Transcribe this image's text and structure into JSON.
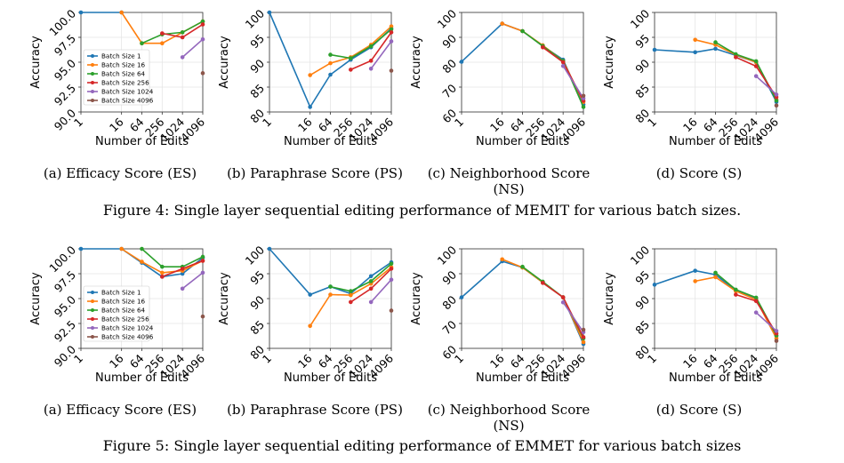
{
  "figures": [
    {
      "caption": "Figure 4: Single layer sequential editing performance of MEMIT for various batch sizes.",
      "subcaptions": [
        "(a) Efficacy Score (ES)",
        "(b) Paraphrase Score (PS)",
        "(c) Neighborhood Score (NS)",
        "(d) Score (S)"
      ]
    },
    {
      "caption": "Figure 5: Single layer sequential editing performance of EMMET for various batch sizes",
      "subcaptions": [
        "(a) Efficacy Score (ES)",
        "(b) Paraphrase Score (PS)",
        "(c) Neighborhood Score (NS)",
        "(d) Score (S)"
      ]
    }
  ],
  "colors": {
    "Batch Size 1": "#1f77b4",
    "Batch Size 16": "#ff7f0e",
    "Batch Size 64": "#2ca02c",
    "Batch Size 256": "#d62728",
    "Batch Size 1024": "#9467bd",
    "Batch Size 4096": "#8c564b"
  },
  "chart_data": [
    {
      "type": "line",
      "figure": 4,
      "panel": "a",
      "xlabel": "Number of Edits",
      "ylabel": "Accuracy",
      "x_ticks": [
        "1",
        "16",
        "64",
        "256",
        "1024",
        "4096"
      ],
      "y_ticks": [
        "90.0",
        "92.5",
        "95.0",
        "97.5",
        "100.0"
      ],
      "ylim": [
        90,
        100
      ],
      "grid": true,
      "legend": "lower-left",
      "series": [
        {
          "name": "Batch Size 1",
          "x": [
            1,
            16
          ],
          "y": [
            100,
            100
          ]
        },
        {
          "name": "Batch Size 16",
          "x": [
            16,
            64,
            256,
            1024,
            4096
          ],
          "y": [
            100,
            96.9,
            96.9,
            98.0,
            99.1
          ]
        },
        {
          "name": "Batch Size 64",
          "x": [
            64,
            256,
            1024,
            4096
          ],
          "y": [
            96.9,
            97.8,
            98.0,
            99.1
          ]
        },
        {
          "name": "Batch Size 256",
          "x": [
            256,
            1024,
            4096
          ],
          "y": [
            97.9,
            97.5,
            98.8
          ]
        },
        {
          "name": "Batch Size 1024",
          "x": [
            1024,
            4096
          ],
          "y": [
            95.5,
            97.3
          ]
        },
        {
          "name": "Batch Size 4096",
          "x": [
            4096
          ],
          "y": [
            93.9
          ]
        }
      ]
    },
    {
      "type": "line",
      "figure": 4,
      "panel": "b",
      "xlabel": "Number of Edits",
      "ylabel": "Accuracy",
      "x_ticks": [
        "1",
        "16",
        "64",
        "256",
        "1024",
        "4096"
      ],
      "y_ticks": [
        "80",
        "85",
        "90",
        "95",
        "100"
      ],
      "ylim": [
        80,
        100
      ],
      "grid": true,
      "series": [
        {
          "name": "Batch Size 1",
          "x": [
            1,
            16,
            64,
            256,
            1024,
            4096
          ],
          "y": [
            100,
            81.0,
            87.5,
            90.5,
            93.0,
            96.8
          ]
        },
        {
          "name": "Batch Size 16",
          "x": [
            16,
            64,
            256,
            1024,
            4096
          ],
          "y": [
            87.4,
            89.8,
            91.0,
            93.5,
            97.2
          ]
        },
        {
          "name": "Batch Size 64",
          "x": [
            64,
            256,
            1024,
            4096
          ],
          "y": [
            91.5,
            90.8,
            93.2,
            96.6
          ]
        },
        {
          "name": "Batch Size 256",
          "x": [
            256,
            1024,
            4096
          ],
          "y": [
            88.5,
            90.3,
            96.0
          ]
        },
        {
          "name": "Batch Size 1024",
          "x": [
            1024,
            4096
          ],
          "y": [
            88.7,
            94.2
          ]
        },
        {
          "name": "Batch Size 4096",
          "x": [
            4096
          ],
          "y": [
            88.3
          ]
        }
      ]
    },
    {
      "type": "line",
      "figure": 4,
      "panel": "c",
      "xlabel": "Number of Edits",
      "ylabel": "Accuracy",
      "x_ticks": [
        "1",
        "16",
        "64",
        "256",
        "1024",
        "4096"
      ],
      "y_ticks": [
        "60",
        "70",
        "80",
        "90",
        "100"
      ],
      "ylim": [
        60,
        100
      ],
      "grid": true,
      "series": [
        {
          "name": "Batch Size 1",
          "x": [
            1,
            16,
            64,
            256,
            1024,
            4096
          ],
          "y": [
            80.2,
            95.5,
            92.5,
            86.5,
            81.0,
            63.0
          ]
        },
        {
          "name": "Batch Size 16",
          "x": [
            16,
            64,
            256,
            1024,
            4096
          ],
          "y": [
            95.5,
            92.5,
            86.8,
            80.5,
            64.0
          ]
        },
        {
          "name": "Batch Size 64",
          "x": [
            64,
            256,
            1024,
            4096
          ],
          "y": [
            92.5,
            86.5,
            80.5,
            62.0
          ]
        },
        {
          "name": "Batch Size 256",
          "x": [
            256,
            1024,
            4096
          ],
          "y": [
            86.0,
            80.0,
            64.5
          ]
        },
        {
          "name": "Batch Size 1024",
          "x": [
            1024,
            4096
          ],
          "y": [
            78.5,
            65.5
          ]
        },
        {
          "name": "Batch Size 4096",
          "x": [
            4096
          ],
          "y": [
            66.5
          ]
        }
      ]
    },
    {
      "type": "line",
      "figure": 4,
      "panel": "d",
      "xlabel": "Number of Edits",
      "ylabel": "Accuracy",
      "x_ticks": [
        "1",
        "16",
        "64",
        "256",
        "1024",
        "4096"
      ],
      "y_ticks": [
        "80",
        "85",
        "90",
        "95",
        "100"
      ],
      "ylim": [
        80,
        100
      ],
      "grid": true,
      "series": [
        {
          "name": "Batch Size 1",
          "x": [
            1,
            16,
            64,
            256,
            1024,
            4096
          ],
          "y": [
            92.5,
            92.0,
            92.7,
            91.4,
            90.0,
            82.0
          ]
        },
        {
          "name": "Batch Size 16",
          "x": [
            16,
            64,
            256,
            1024,
            4096
          ],
          "y": [
            94.5,
            93.5,
            91.5,
            90.0,
            82.5
          ]
        },
        {
          "name": "Batch Size 64",
          "x": [
            64,
            256,
            1024,
            4096
          ],
          "y": [
            94.0,
            91.6,
            90.2,
            82.3
          ]
        },
        {
          "name": "Batch Size 256",
          "x": [
            256,
            1024,
            4096
          ],
          "y": [
            91.0,
            89.2,
            83.0
          ]
        },
        {
          "name": "Batch Size 1024",
          "x": [
            1024,
            4096
          ],
          "y": [
            87.2,
            83.5
          ]
        },
        {
          "name": "Batch Size 4096",
          "x": [
            4096
          ],
          "y": [
            81.3
          ]
        }
      ]
    },
    {
      "type": "line",
      "figure": 5,
      "panel": "a",
      "xlabel": "Number of Edits",
      "ylabel": "Accuracy",
      "x_ticks": [
        "1",
        "16",
        "64",
        "256",
        "1024",
        "4096"
      ],
      "y_ticks": [
        "90.0",
        "92.5",
        "95.0",
        "97.5",
        "100.0"
      ],
      "ylim": [
        90,
        100
      ],
      "grid": true,
      "legend": "lower-left",
      "series": [
        {
          "name": "Batch Size 1",
          "x": [
            1,
            16,
            64,
            256,
            1024,
            4096
          ],
          "y": [
            100,
            100,
            98.6,
            97.2,
            97.5,
            99.1
          ]
        },
        {
          "name": "Batch Size 16",
          "x": [
            16,
            64,
            256,
            1024,
            4096
          ],
          "y": [
            100,
            98.7,
            97.6,
            97.8,
            98.8
          ]
        },
        {
          "name": "Batch Size 64",
          "x": [
            64,
            256,
            1024,
            4096
          ],
          "y": [
            100,
            98.2,
            98.2,
            99.2
          ]
        },
        {
          "name": "Batch Size 256",
          "x": [
            256,
            1024,
            4096
          ],
          "y": [
            97.2,
            98.0,
            98.8
          ]
        },
        {
          "name": "Batch Size 1024",
          "x": [
            1024,
            4096
          ],
          "y": [
            96.0,
            97.6
          ]
        },
        {
          "name": "Batch Size 4096",
          "x": [
            4096
          ],
          "y": [
            93.2
          ]
        }
      ]
    },
    {
      "type": "line",
      "figure": 5,
      "panel": "b",
      "xlabel": "Number of Edits",
      "ylabel": "Accuracy",
      "x_ticks": [
        "1",
        "16",
        "64",
        "256",
        "1024",
        "4096"
      ],
      "y_ticks": [
        "80",
        "85",
        "90",
        "95",
        "100"
      ],
      "ylim": [
        80,
        100
      ],
      "grid": true,
      "series": [
        {
          "name": "Batch Size 1",
          "x": [
            1,
            16,
            64,
            256,
            1024,
            4096
          ],
          "y": [
            100,
            90.8,
            92.4,
            91.0,
            94.5,
            97.3
          ]
        },
        {
          "name": "Batch Size 16",
          "x": [
            16,
            64,
            256,
            1024,
            4096
          ],
          "y": [
            84.5,
            90.8,
            90.7,
            93.0,
            96.3
          ]
        },
        {
          "name": "Batch Size 64",
          "x": [
            64,
            256,
            1024,
            4096
          ],
          "y": [
            92.4,
            91.5,
            93.5,
            97.0
          ]
        },
        {
          "name": "Batch Size 256",
          "x": [
            256,
            1024,
            4096
          ],
          "y": [
            89.3,
            92.0,
            96.0
          ]
        },
        {
          "name": "Batch Size 1024",
          "x": [
            1024,
            4096
          ],
          "y": [
            89.3,
            93.8
          ]
        },
        {
          "name": "Batch Size 4096",
          "x": [
            4096
          ],
          "y": [
            87.6
          ]
        }
      ]
    },
    {
      "type": "line",
      "figure": 5,
      "panel": "c",
      "xlabel": "Number of Edits",
      "ylabel": "Accuracy",
      "x_ticks": [
        "1",
        "16",
        "64",
        "256",
        "1024",
        "4096"
      ],
      "y_ticks": [
        "60",
        "70",
        "80",
        "90",
        "100"
      ],
      "ylim": [
        60,
        100
      ],
      "grid": true,
      "series": [
        {
          "name": "Batch Size 1",
          "x": [
            1,
            16,
            64,
            256,
            1024,
            4096
          ],
          "y": [
            80.5,
            95.0,
            92.5,
            86.5,
            80.5,
            61.8
          ]
        },
        {
          "name": "Batch Size 16",
          "x": [
            16,
            64,
            256,
            1024,
            4096
          ],
          "y": [
            95.8,
            92.5,
            86.5,
            80.5,
            62.5
          ]
        },
        {
          "name": "Batch Size 64",
          "x": [
            64,
            256,
            1024,
            4096
          ],
          "y": [
            92.8,
            86.8,
            80.5,
            64.0
          ]
        },
        {
          "name": "Batch Size 256",
          "x": [
            256,
            1024,
            4096
          ],
          "y": [
            86.3,
            80.5,
            64.5
          ]
        },
        {
          "name": "Batch Size 1024",
          "x": [
            1024,
            4096
          ],
          "y": [
            78.5,
            66.5
          ]
        },
        {
          "name": "Batch Size 4096",
          "x": [
            4096
          ],
          "y": [
            67.5
          ]
        }
      ]
    },
    {
      "type": "line",
      "figure": 5,
      "panel": "d",
      "xlabel": "Number of Edits",
      "ylabel": "Accuracy",
      "x_ticks": [
        "1",
        "16",
        "64",
        "256",
        "1024",
        "4096"
      ],
      "y_ticks": [
        "80",
        "85",
        "90",
        "95",
        "100"
      ],
      "ylim": [
        80,
        100
      ],
      "grid": true,
      "series": [
        {
          "name": "Batch Size 1",
          "x": [
            1,
            16,
            64,
            256,
            1024,
            4096
          ],
          "y": [
            92.8,
            95.6,
            94.8,
            91.6,
            90.0,
            82.5
          ]
        },
        {
          "name": "Batch Size 16",
          "x": [
            16,
            64,
            256,
            1024,
            4096
          ],
          "y": [
            93.5,
            94.3,
            91.5,
            89.8,
            82.0
          ]
        },
        {
          "name": "Batch Size 64",
          "x": [
            64,
            256,
            1024,
            4096
          ],
          "y": [
            95.2,
            91.8,
            90.2,
            82.6
          ]
        },
        {
          "name": "Batch Size 256",
          "x": [
            256,
            1024,
            4096
          ],
          "y": [
            90.8,
            89.5,
            83.0
          ]
        },
        {
          "name": "Batch Size 1024",
          "x": [
            1024,
            4096
          ],
          "y": [
            87.2,
            83.5
          ]
        },
        {
          "name": "Batch Size 4096",
          "x": [
            4096
          ],
          "y": [
            81.5
          ]
        }
      ]
    }
  ]
}
